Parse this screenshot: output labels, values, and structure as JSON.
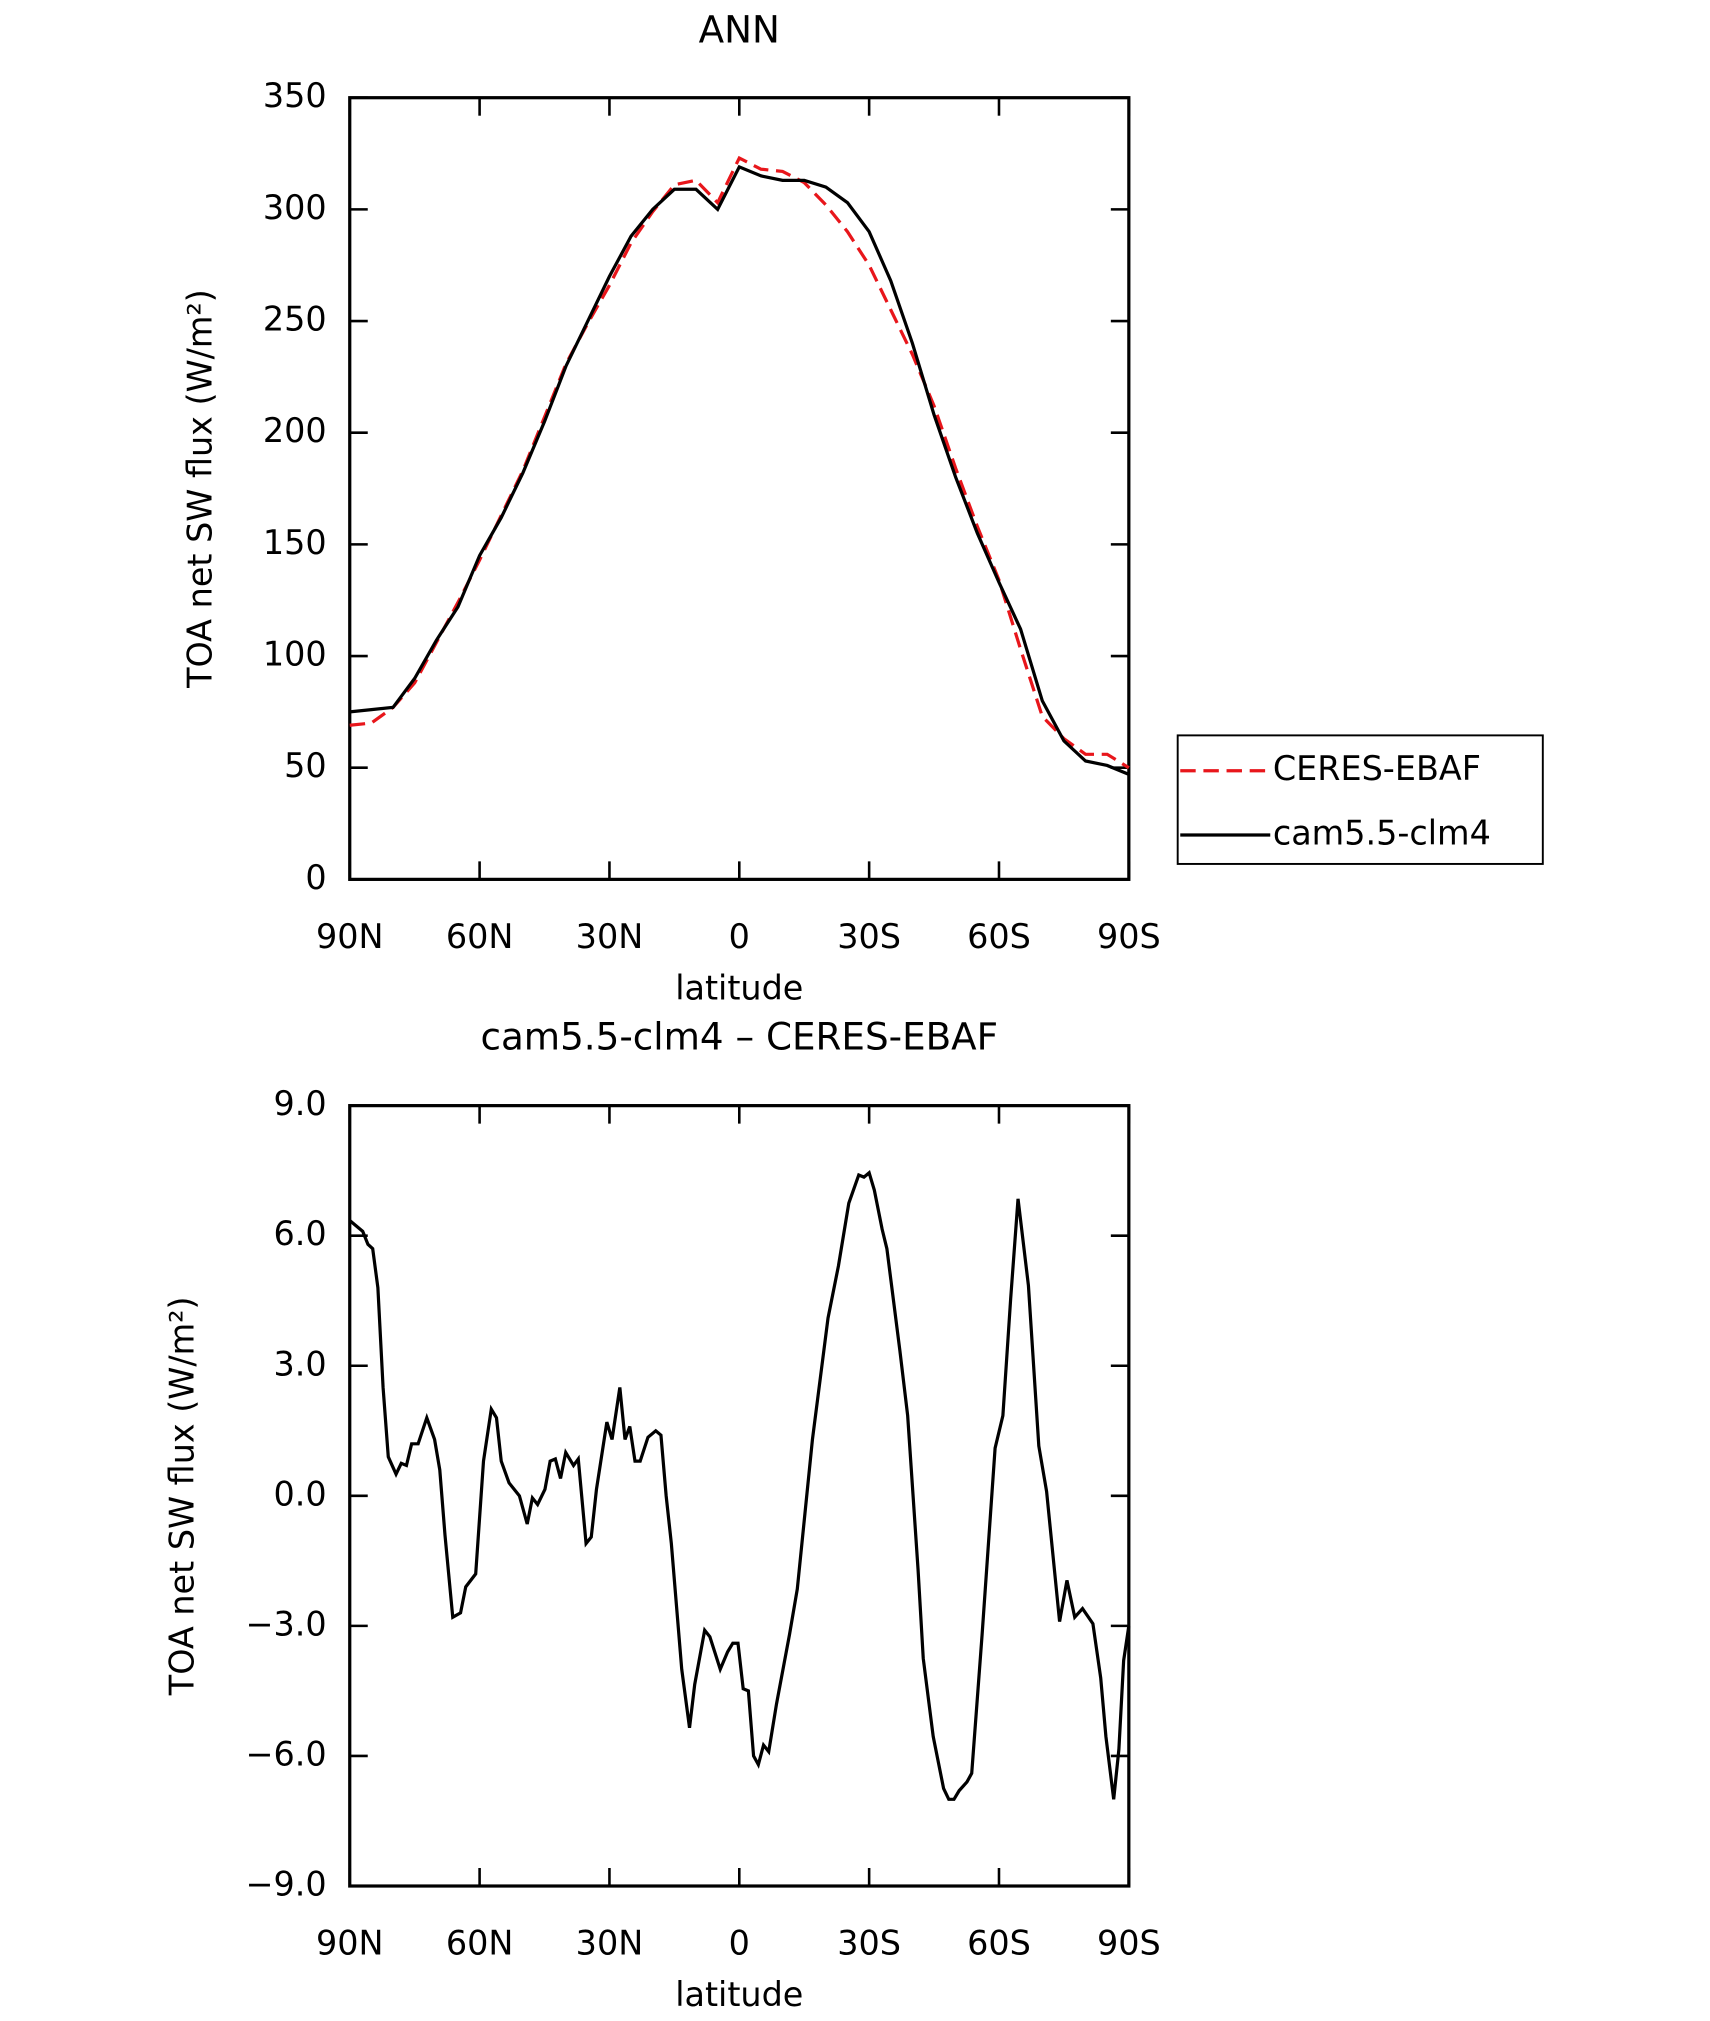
{
  "chart_data": [
    {
      "type": "line",
      "title": "ANN",
      "xlabel": "latitude",
      "ylabel": "TOA net SW flux (W/m²)",
      "x": [
        90,
        85,
        80,
        75,
        70,
        65,
        60,
        55,
        50,
        45,
        40,
        35,
        30,
        25,
        20,
        15,
        10,
        5,
        0,
        -5,
        -10,
        -15,
        -20,
        -25,
        -30,
        -35,
        -40,
        -45,
        -50,
        -55,
        -60,
        -65,
        -70,
        -75,
        -80,
        -85,
        -90
      ],
      "series": [
        {
          "name": "CERES-EBAF",
          "color": "#e8161b",
          "dash": true,
          "values": [
            69,
            70,
            77,
            88,
            106,
            124,
            143,
            163,
            183,
            207,
            231,
            249,
            266,
            285,
            299,
            311,
            313,
            303,
            323,
            318,
            317,
            312,
            302,
            290,
            275,
            255,
            235,
            212,
            184,
            158,
            134,
            103,
            73,
            63,
            56,
            56,
            50
          ]
        },
        {
          "name": "cam5.5-clm4",
          "color": "#000000",
          "dash": false,
          "values": [
            75,
            76,
            77,
            90,
            107,
            122,
            145,
            162,
            182,
            205,
            230,
            250,
            270,
            288,
            300,
            309,
            309,
            300,
            319,
            315,
            313,
            313,
            310,
            303,
            290,
            268,
            240,
            208,
            180,
            155,
            133,
            112,
            80,
            62,
            53,
            51,
            47
          ]
        }
      ],
      "xlim": [
        90,
        -90
      ],
      "ylim": [
        0,
        350
      ],
      "xticks": [
        {
          "value": 90,
          "label": "90N"
        },
        {
          "value": 60,
          "label": "60N"
        },
        {
          "value": 30,
          "label": "30N"
        },
        0,
        {
          "value": -30,
          "label": "30S"
        },
        {
          "value": -60,
          "label": "60S"
        },
        {
          "value": -90,
          "label": "90S"
        }
      ],
      "yticks": [
        0,
        50,
        100,
        150,
        200,
        250,
        300,
        350
      ],
      "legend": "right"
    },
    {
      "type": "line",
      "title": "cam5.5-clm4 – CERES-EBAF",
      "xlabel": "latitude",
      "ylabel": "TOA net SW flux (W/m²)",
      "x": [
        90.0,
        87.0,
        85.8,
        84.7,
        83.5,
        82.3,
        81.1,
        79.3,
        78.1,
        76.9,
        75.7,
        74.2,
        72.2,
        70.4,
        69.2,
        68.0,
        66.2,
        64.4,
        63.2,
        60.9,
        59.1,
        57.3,
        56.1,
        55.0,
        53.2,
        50.8,
        49.0,
        47.8,
        46.6,
        44.9,
        43.7,
        42.5,
        41.3,
        40.1,
        38.3,
        37.2,
        35.4,
        34.2,
        33.0,
        30.6,
        29.4,
        27.6,
        26.4,
        25.3,
        24.1,
        22.9,
        21.1,
        19.3,
        18.1,
        16.9,
        15.7,
        13.3,
        11.5,
        10.3,
        8.0,
        6.8,
        4.4,
        2.7,
        1.5,
        0.3,
        -0.9,
        -2.1,
        -3.3,
        -4.4,
        -5.6,
        -6.8,
        -8.6,
        -11.6,
        -13.4,
        -16.9,
        -20.5,
        -22.9,
        -25.3,
        -27.6,
        -28.8,
        -30.0,
        -31.2,
        -33.0,
        -34.1,
        -37.1,
        -38.9,
        -41.3,
        -42.5,
        -44.8,
        -47.2,
        -48.4,
        -49.6,
        -50.8,
        -52.6,
        -53.7,
        -56.1,
        -59.1,
        -60.9,
        -62.7,
        -64.4,
        -66.8,
        -69.2,
        -71.0,
        -72.8,
        -74.0,
        -75.7,
        -77.5,
        -79.3,
        -81.7,
        -83.5,
        -84.7,
        -86.5,
        -87.7,
        -88.8,
        -90.0
      ],
      "series": [
        {
          "color": "#000000",
          "dash": false,
          "values": [
            6.35,
            6.1,
            5.8,
            5.7,
            4.8,
            2.5,
            0.9,
            0.5,
            0.75,
            0.7,
            1.2,
            1.2,
            1.8,
            1.3,
            0.6,
            -0.9,
            -2.8,
            -2.7,
            -2.1,
            -1.8,
            0.8,
            2.0,
            1.8,
            0.8,
            0.3,
            0,
            -0.65,
            -0.05,
            -0.2,
            0.15,
            0.8,
            0.85,
            0.4,
            1.0,
            0.7,
            0.85,
            -1.1,
            -0.95,
            0.15,
            1.7,
            1.3,
            2.5,
            1.3,
            1.6,
            0.8,
            0.8,
            1.35,
            1.5,
            1.4,
            0,
            -1.1,
            -4.0,
            -5.35,
            -4.35,
            -3.1,
            -3.25,
            -4.0,
            -3.6,
            -3.4,
            -3.4,
            -4.45,
            -4.5,
            -6.0,
            -6.2,
            -5.75,
            -5.9,
            -4.8,
            -3.2,
            -2.15,
            1.3,
            4.1,
            5.3,
            6.75,
            7.4,
            7.35,
            7.45,
            7.05,
            6.15,
            5.7,
            3.35,
            1.85,
            -1.7,
            -3.75,
            -5.55,
            -6.75,
            -7.0,
            -7.0,
            -6.8,
            -6.6,
            -6.4,
            -3.2,
            1.1,
            1.85,
            4.55,
            6.85,
            4.85,
            1.15,
            0.1,
            -1.7,
            -2.9,
            -1.95,
            -2.8,
            -2.6,
            -2.95,
            -4.2,
            -5.55,
            -7.0,
            -5.85,
            -3.8,
            -3.0
          ]
        }
      ],
      "xlim": [
        90,
        -90
      ],
      "ylim": [
        -9,
        9
      ],
      "xticks": [
        {
          "value": 90,
          "label": "90N"
        },
        {
          "value": 60,
          "label": "60N"
        },
        {
          "value": 30,
          "label": "30N"
        },
        0,
        {
          "value": -30,
          "label": "30S"
        },
        {
          "value": -60,
          "label": "60S"
        },
        {
          "value": -90,
          "label": "90S"
        }
      ],
      "yticks": [
        {
          "value": -9,
          "label": "−9.0"
        },
        {
          "value": -6,
          "label": "−6.0"
        },
        {
          "value": -3,
          "label": "−3.0"
        },
        {
          "value": 0,
          "label": "0.0"
        },
        {
          "value": 3,
          "label": "3.0"
        },
        {
          "value": 6,
          "label": "6.0"
        },
        {
          "value": 9,
          "label": "9.0"
        }
      ]
    }
  ]
}
